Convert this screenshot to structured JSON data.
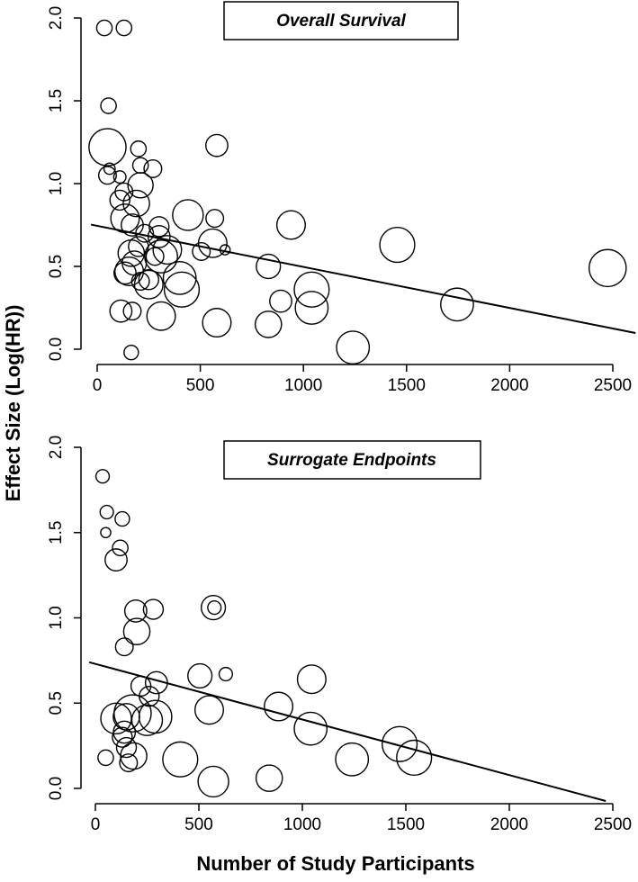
{
  "shared": {
    "ylabel": "Effect Size (Log(HR))",
    "xlabel": "Number of Study Participants"
  },
  "chart_data": [
    {
      "type": "scatter",
      "title": "Overall Survival",
      "xlim": [
        0,
        2500
      ],
      "ylim": [
        0,
        2
      ],
      "xticks": [
        "0",
        "500",
        "1000",
        "1500",
        "2000",
        "2500"
      ],
      "yticks": [
        "0.0",
        "0.5",
        "1.0",
        "1.5",
        "2.0"
      ],
      "regression": {
        "intercept": 0.745,
        "slope": -0.000248
      },
      "points": [
        {
          "x": 35,
          "y": 1.94,
          "w": 0.3
        },
        {
          "x": 130,
          "y": 1.94,
          "w": 0.3
        },
        {
          "x": 55,
          "y": 1.47,
          "w": 0.3
        },
        {
          "x": 50,
          "y": 1.22,
          "w": 1.3
        },
        {
          "x": 200,
          "y": 1.21,
          "w": 0.3
        },
        {
          "x": 580,
          "y": 1.23,
          "w": 0.6
        },
        {
          "x": 60,
          "y": 1.09,
          "w": 0.1
        },
        {
          "x": 210,
          "y": 1.11,
          "w": 0.3
        },
        {
          "x": 270,
          "y": 1.09,
          "w": 0.4
        },
        {
          "x": 50,
          "y": 1.05,
          "w": 0.4
        },
        {
          "x": 110,
          "y": 1.04,
          "w": 0.15
        },
        {
          "x": 210,
          "y": 0.99,
          "w": 0.75
        },
        {
          "x": 130,
          "y": 0.95,
          "w": 0.4
        },
        {
          "x": 110,
          "y": 0.9,
          "w": 0.5
        },
        {
          "x": 190,
          "y": 0.88,
          "w": 0.8
        },
        {
          "x": 440,
          "y": 0.81,
          "w": 1.0
        },
        {
          "x": 570,
          "y": 0.79,
          "w": 0.4
        },
        {
          "x": 135,
          "y": 0.79,
          "w": 0.9
        },
        {
          "x": 940,
          "y": 0.75,
          "w": 0.9
        },
        {
          "x": 170,
          "y": 0.75,
          "w": 0.6
        },
        {
          "x": 300,
          "y": 0.74,
          "w": 0.5
        },
        {
          "x": 230,
          "y": 0.7,
          "w": 0.4
        },
        {
          "x": 300,
          "y": 0.68,
          "w": 0.6
        },
        {
          "x": 560,
          "y": 0.64,
          "w": 0.9
        },
        {
          "x": 1455,
          "y": 0.63,
          "w": 1.2
        },
        {
          "x": 200,
          "y": 0.62,
          "w": 0.5
        },
        {
          "x": 340,
          "y": 0.6,
          "w": 0.9
        },
        {
          "x": 620,
          "y": 0.6,
          "w": 0.05
        },
        {
          "x": 505,
          "y": 0.59,
          "w": 0.4
        },
        {
          "x": 165,
          "y": 0.58,
          "w": 0.8
        },
        {
          "x": 280,
          "y": 0.56,
          "w": 0.4
        },
        {
          "x": 310,
          "y": 0.56,
          "w": 1.1
        },
        {
          "x": 180,
          "y": 0.52,
          "w": 0.7
        },
        {
          "x": 830,
          "y": 0.5,
          "w": 0.7
        },
        {
          "x": 155,
          "y": 0.47,
          "w": 0.9
        },
        {
          "x": 2475,
          "y": 0.49,
          "w": 1.3
        },
        {
          "x": 135,
          "y": 0.46,
          "w": 0.6
        },
        {
          "x": 400,
          "y": 0.43,
          "w": 1.1
        },
        {
          "x": 250,
          "y": 0.42,
          "w": 0.5
        },
        {
          "x": 210,
          "y": 0.41,
          "w": 0.4
        },
        {
          "x": 250,
          "y": 0.39,
          "w": 0.9
        },
        {
          "x": 410,
          "y": 0.36,
          "w": 1.2
        },
        {
          "x": 1040,
          "y": 0.36,
          "w": 1.2
        },
        {
          "x": 890,
          "y": 0.29,
          "w": 0.6
        },
        {
          "x": 1745,
          "y": 0.27,
          "w": 1.1
        },
        {
          "x": 1040,
          "y": 0.25,
          "w": 1.1
        },
        {
          "x": 115,
          "y": 0.23,
          "w": 0.6
        },
        {
          "x": 170,
          "y": 0.23,
          "w": 0.4
        },
        {
          "x": 310,
          "y": 0.2,
          "w": 0.9
        },
        {
          "x": 580,
          "y": 0.16,
          "w": 0.9
        },
        {
          "x": 830,
          "y": 0.15,
          "w": 0.8
        },
        {
          "x": 1240,
          "y": 0.01,
          "w": 1.1
        },
        {
          "x": 165,
          "y": -0.02,
          "w": 0.25
        }
      ]
    },
    {
      "type": "scatter",
      "title": "Surrogate Endpoints",
      "xlim": [
        0,
        2500
      ],
      "ylim": [
        0,
        2
      ],
      "xticks": [
        "0",
        "500",
        "1000",
        "1500",
        "2000",
        "2500"
      ],
      "yticks": [
        "0.0",
        "0.5",
        "1.0",
        "1.5",
        "2.0"
      ],
      "regression": {
        "intercept": 0.73,
        "slope": -0.000326
      },
      "points": [
        {
          "x": 35,
          "y": 1.83,
          "w": 0.2
        },
        {
          "x": 55,
          "y": 1.62,
          "w": 0.2
        },
        {
          "x": 130,
          "y": 1.58,
          "w": 0.25
        },
        {
          "x": 50,
          "y": 1.5,
          "w": 0.05
        },
        {
          "x": 120,
          "y": 1.41,
          "w": 0.3
        },
        {
          "x": 100,
          "y": 1.34,
          "w": 0.6
        },
        {
          "x": 570,
          "y": 1.06,
          "w": 0.7
        },
        {
          "x": 575,
          "y": 1.06,
          "w": 0.2
        },
        {
          "x": 195,
          "y": 1.04,
          "w": 0.6
        },
        {
          "x": 280,
          "y": 1.05,
          "w": 0.5
        },
        {
          "x": 200,
          "y": 0.92,
          "w": 0.8
        },
        {
          "x": 140,
          "y": 0.83,
          "w": 0.4
        },
        {
          "x": 505,
          "y": 0.66,
          "w": 0.7
        },
        {
          "x": 630,
          "y": 0.67,
          "w": 0.2
        },
        {
          "x": 1045,
          "y": 0.64,
          "w": 0.9
        },
        {
          "x": 295,
          "y": 0.62,
          "w": 0.6
        },
        {
          "x": 220,
          "y": 0.6,
          "w": 0.5
        },
        {
          "x": 260,
          "y": 0.54,
          "w": 0.5
        },
        {
          "x": 885,
          "y": 0.48,
          "w": 0.9
        },
        {
          "x": 550,
          "y": 0.46,
          "w": 0.9
        },
        {
          "x": 180,
          "y": 0.44,
          "w": 1.3
        },
        {
          "x": 150,
          "y": 0.42,
          "w": 0.8
        },
        {
          "x": 100,
          "y": 0.41,
          "w": 1.0
        },
        {
          "x": 290,
          "y": 0.42,
          "w": 1.1
        },
        {
          "x": 250,
          "y": 0.4,
          "w": 1.0
        },
        {
          "x": 1040,
          "y": 0.35,
          "w": 1.1
        },
        {
          "x": 140,
          "y": 0.33,
          "w": 0.6
        },
        {
          "x": 130,
          "y": 0.3,
          "w": 0.5
        },
        {
          "x": 1470,
          "y": 0.26,
          "w": 1.2
        },
        {
          "x": 150,
          "y": 0.24,
          "w": 0.5
        },
        {
          "x": 185,
          "y": 0.19,
          "w": 0.8
        },
        {
          "x": 50,
          "y": 0.18,
          "w": 0.3
        },
        {
          "x": 410,
          "y": 0.17,
          "w": 1.2
        },
        {
          "x": 1240,
          "y": 0.17,
          "w": 1.1
        },
        {
          "x": 1540,
          "y": 0.18,
          "w": 1.2
        },
        {
          "x": 160,
          "y": 0.15,
          "w": 0.4
        },
        {
          "x": 840,
          "y": 0.06,
          "w": 0.8
        },
        {
          "x": 570,
          "y": 0.04,
          "w": 1.0
        }
      ]
    }
  ]
}
